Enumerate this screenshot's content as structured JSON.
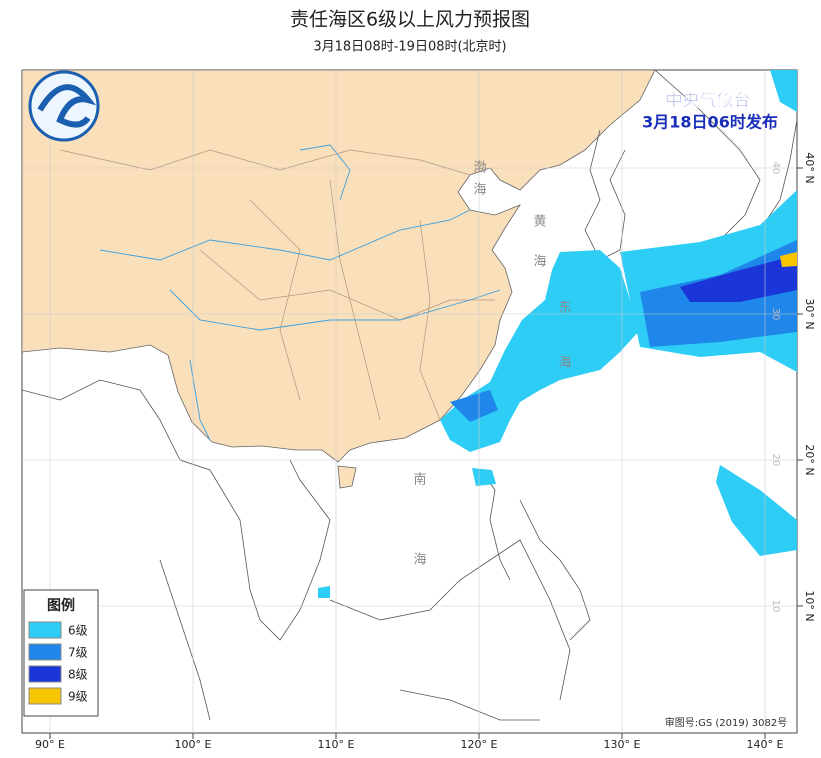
{
  "header": {
    "title": "责任海区6级以上风力预报图",
    "subtitle": "3月18日08时-19日08时(北京时)"
  },
  "issuer": {
    "name": "中央气象台",
    "time": "3月18日06时发布"
  },
  "legend": {
    "title": "图例",
    "items": [
      {
        "label": "6级",
        "color": "#2ecdf5"
      },
      {
        "label": "7级",
        "color": "#1f86ea"
      },
      {
        "label": "8级",
        "color": "#1a35d8"
      },
      {
        "label": "9级",
        "color": "#f7c600"
      }
    ]
  },
  "seas": [
    {
      "chars": [
        "渤",
        "海"
      ]
    },
    {
      "chars": [
        "黄",
        "海"
      ]
    },
    {
      "chars": [
        "东",
        "海"
      ]
    },
    {
      "chars": [
        "南",
        "海"
      ]
    }
  ],
  "grid": {
    "lon": [
      {
        "value": 90,
        "label": "90° E"
      },
      {
        "value": 100,
        "label": "100° E"
      },
      {
        "value": 110,
        "label": "110° E"
      },
      {
        "value": 120,
        "label": "120° E"
      },
      {
        "value": 130,
        "label": "130° E"
      },
      {
        "value": 140,
        "label": "140° E"
      }
    ],
    "lat": [
      {
        "value": 40,
        "label": "40° N",
        "inner": "40"
      },
      {
        "value": 30,
        "label": "30° N",
        "inner": "30"
      },
      {
        "value": 20,
        "label": "20° N",
        "inner": "20"
      },
      {
        "value": 10,
        "label": "10° N",
        "inner": "10"
      }
    ]
  },
  "footer": {
    "approval": "审图号:GS (2019) 3082号"
  }
}
